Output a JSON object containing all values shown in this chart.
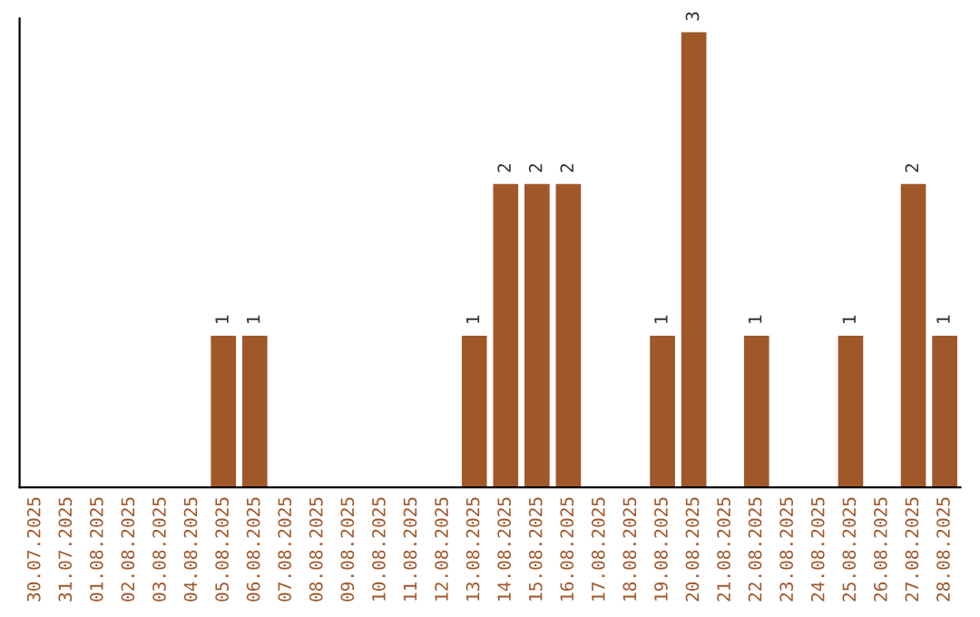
{
  "chart_data": {
    "type": "bar",
    "categories": [
      "30.07.2025",
      "31.07.2025",
      "01.08.2025",
      "02.08.2025",
      "03.08.2025",
      "04.08.2025",
      "05.08.2025",
      "06.08.2025",
      "07.08.2025",
      "08.08.2025",
      "09.08.2025",
      "10.08.2025",
      "11.08.2025",
      "12.08.2025",
      "13.08.2025",
      "14.08.2025",
      "15.08.2025",
      "16.08.2025",
      "17.08.2025",
      "18.08.2025",
      "19.08.2025",
      "20.08.2025",
      "21.08.2025",
      "22.08.2025",
      "23.08.2025",
      "24.08.2025",
      "25.08.2025",
      "26.08.2025",
      "27.08.2025",
      "28.08.2025"
    ],
    "values": [
      0,
      0,
      0,
      0,
      0,
      0,
      1,
      1,
      0,
      0,
      0,
      0,
      0,
      0,
      1,
      2,
      2,
      2,
      0,
      0,
      1,
      3,
      0,
      1,
      0,
      0,
      1,
      0,
      2,
      1
    ],
    "value_labels": [
      null,
      null,
      null,
      null,
      null,
      null,
      "1",
      "1",
      null,
      null,
      null,
      null,
      null,
      null,
      "1",
      "2",
      "2",
      "2",
      null,
      null,
      "1",
      "3",
      null,
      "1",
      null,
      null,
      "1",
      null,
      "2",
      "1"
    ],
    "color": "#a0572a",
    "grid": false,
    "legend": false
  }
}
